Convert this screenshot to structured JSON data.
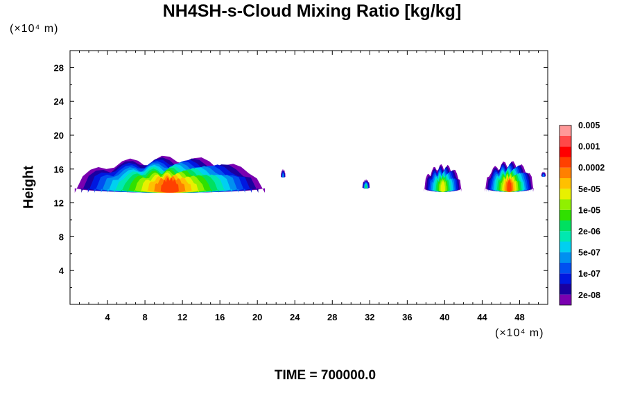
{
  "title": "NH4SH-s-Cloud Mixing Ratio [kg/kg]",
  "y_unit": "(×10⁴ m)",
  "x_unit": "(×10⁴ m)",
  "ylabel": "Height",
  "time_label": "TIME = 700000.0",
  "chart_data": {
    "type": "heatmap",
    "title": "NH4SH-s-Cloud Mixing Ratio [kg/kg]",
    "ylabel": "Height",
    "xlim": [
      0,
      51
    ],
    "ylim": [
      0,
      30
    ],
    "x_ticks": [
      4,
      8,
      12,
      16,
      20,
      24,
      28,
      32,
      36,
      40,
      44,
      48
    ],
    "y_ticks": [
      4,
      8,
      12,
      16,
      20,
      24,
      28
    ],
    "colorbar_labels": [
      "0.005",
      "0.001",
      "0.0002",
      "5e-05",
      "1e-05",
      "2e-06",
      "5e-07",
      "1e-07",
      "2e-08"
    ],
    "colorbar_colors": [
      "#7a00b0",
      "#1a00a0",
      "#0018e0",
      "#0050f0",
      "#0090f0",
      "#00d0f0",
      "#00e8b0",
      "#00e060",
      "#30e000",
      "#90f000",
      "#e8f000",
      "#ffc000",
      "#ff8000",
      "#ff4000",
      "#ff0000",
      "#ff4848",
      "#ff9898"
    ],
    "clouds": [
      {
        "x": [
          0.5,
          20.8
        ],
        "y": [
          13.2,
          17.6
        ],
        "peak": 0.001
      },
      {
        "x": [
          22.5,
          23.0
        ],
        "y": [
          15.0,
          16.0
        ],
        "peak": 1e-07
      },
      {
        "x": [
          31.2,
          32.0
        ],
        "y": [
          13.7,
          14.8
        ],
        "peak": 2e-06
      },
      {
        "x": [
          37.8,
          41.8
        ],
        "y": [
          13.3,
          16.6
        ],
        "peak": 5e-05
      },
      {
        "x": [
          44.3,
          49.5
        ],
        "y": [
          13.3,
          17.0
        ],
        "peak": 0.001
      },
      {
        "x": [
          50.3,
          50.8
        ],
        "y": [
          15.1,
          15.7
        ],
        "peak": 1e-07
      }
    ]
  }
}
